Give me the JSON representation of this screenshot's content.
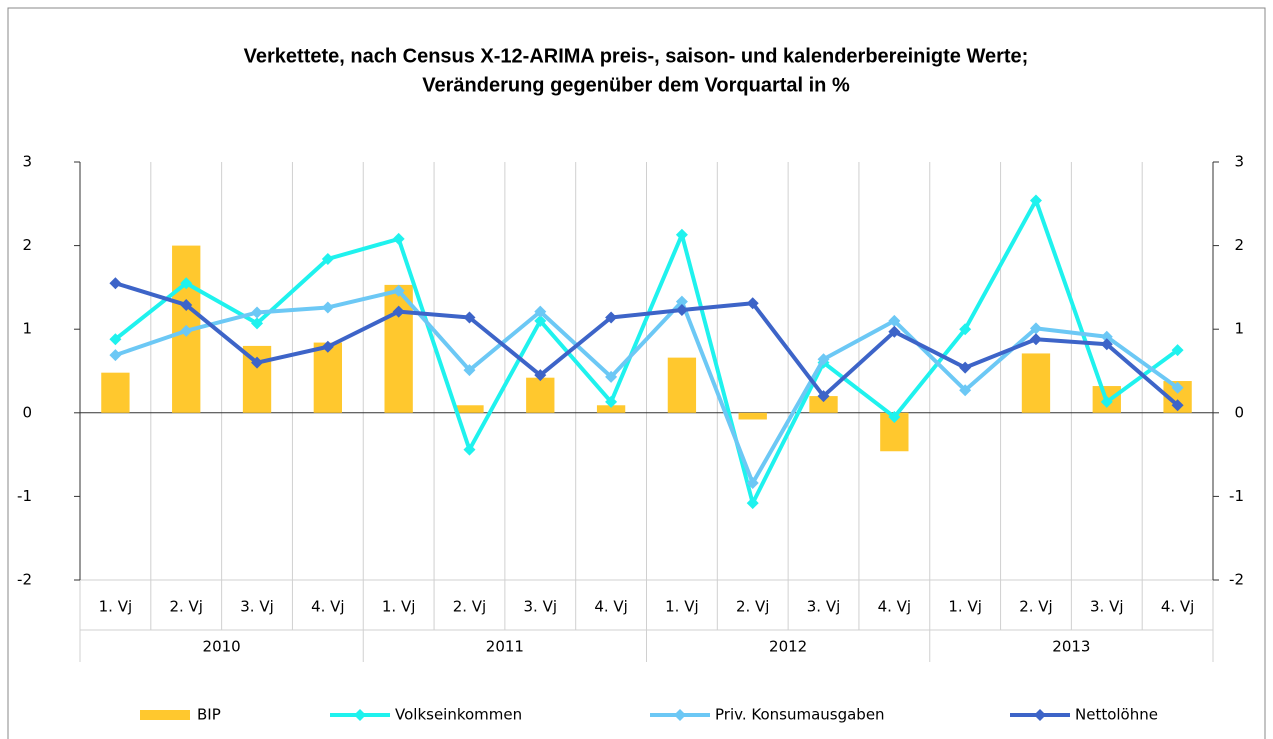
{
  "chart_data": {
    "type": "bar_line",
    "title": [
      "Verkettete, nach Census X-12-ARIMA preis-, saison- und kalenderbereinigte Werte;",
      "Veränderung gegenüber dem Vorquartal in %"
    ],
    "categories": [
      "1. Vj",
      "2. Vj",
      "3. Vj",
      "4. Vj",
      "1. Vj",
      "2. Vj",
      "3. Vj",
      "4. Vj",
      "1. Vj",
      "2. Vj",
      "3. Vj",
      "4. Vj",
      "1. Vj",
      "2. Vj",
      "3. Vj",
      "4. Vj"
    ],
    "groups": [
      "2010",
      "2011",
      "2012",
      "2013"
    ],
    "series": [
      {
        "name": "BIP",
        "kind": "bar",
        "color": "#ffc82e",
        "values": [
          0.48,
          2.0,
          0.8,
          0.84,
          1.53,
          0.09,
          0.42,
          0.09,
          0.66,
          -0.08,
          0.2,
          -0.46,
          0.0,
          0.71,
          0.32,
          0.38
        ]
      },
      {
        "name": "Volkseinkommen",
        "kind": "line",
        "color": "#1ff2ee",
        "values": [
          0.88,
          1.55,
          1.07,
          1.84,
          2.08,
          -0.44,
          1.1,
          0.13,
          2.13,
          -1.08,
          0.6,
          -0.05,
          1.0,
          2.54,
          0.13,
          0.75
        ]
      },
      {
        "name": "Priv. Konsumausgaben",
        "kind": "line",
        "color": "#6cc8f5",
        "values": [
          0.69,
          0.98,
          1.2,
          1.26,
          1.46,
          0.51,
          1.21,
          0.43,
          1.33,
          -0.84,
          0.64,
          1.1,
          0.27,
          1.01,
          0.91,
          0.3
        ]
      },
      {
        "name": "Nettolöhne",
        "kind": "line",
        "color": "#3d64c8",
        "values": [
          1.55,
          1.29,
          0.6,
          0.79,
          1.21,
          1.14,
          0.45,
          1.14,
          1.23,
          1.31,
          0.2,
          0.97,
          0.54,
          0.88,
          0.82,
          0.09
        ]
      }
    ],
    "ylim": [
      -2,
      3
    ],
    "yticks": [
      -2,
      -1,
      0,
      1,
      2,
      3
    ],
    "y2lim": [
      -2,
      3
    ],
    "y2ticks": [
      -2,
      -1,
      0,
      1,
      2,
      3
    ],
    "legend": "bottom"
  }
}
